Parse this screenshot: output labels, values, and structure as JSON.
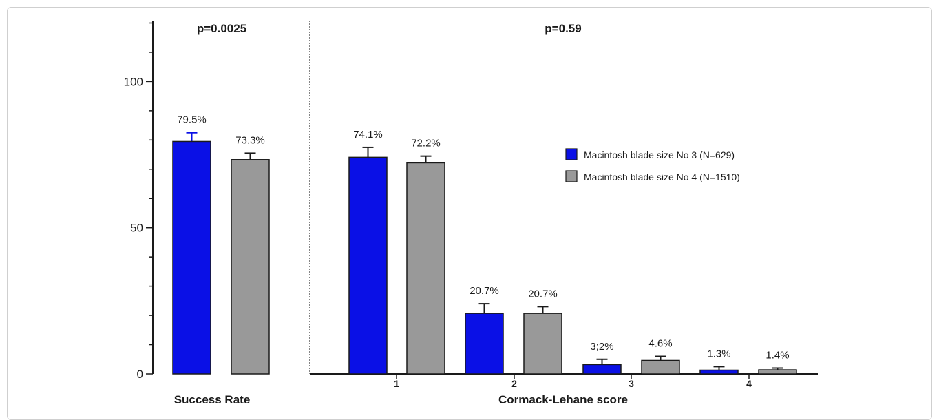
{
  "chart_data": {
    "type": "bar",
    "colors": {
      "series_a": "#0a10e6",
      "series_b": "#999999"
    },
    "legend_position": "top-right",
    "ylim": [
      0,
      120
    ],
    "yticks": [
      0,
      50,
      100
    ],
    "grid": false,
    "series": [
      {
        "name": "Macintosh blade size No 3 (N=629)"
      },
      {
        "name": "Macintosh blade size No 4 (N=1510)"
      }
    ],
    "panels": [
      {
        "group_label": "Success Rate",
        "p_value": "p=0.0025",
        "categories": [
          ""
        ],
        "values": [
          [
            79.5
          ],
          [
            73.3
          ]
        ],
        "labels": [
          [
            "79.5%"
          ],
          [
            "73.3%"
          ]
        ],
        "error_upper": [
          [
            82.5
          ],
          [
            75.5
          ]
        ]
      },
      {
        "group_label": "Cormack-Lehane score",
        "p_value": "p=0.59",
        "categories": [
          "1",
          "2",
          "3",
          "4"
        ],
        "values": [
          [
            74.1,
            20.7,
            3.2,
            1.3
          ],
          [
            72.2,
            20.7,
            4.6,
            1.4
          ]
        ],
        "labels": [
          [
            "74.1%",
            "20.7%",
            "3;2%",
            "1.3%"
          ],
          [
            "72.2%",
            "20.7%",
            "4.6%",
            "1.4%"
          ]
        ],
        "error_upper": [
          [
            77.5,
            24.0,
            5.0,
            2.5
          ],
          [
            74.5,
            23.0,
            6.0,
            2.0
          ]
        ]
      }
    ]
  }
}
